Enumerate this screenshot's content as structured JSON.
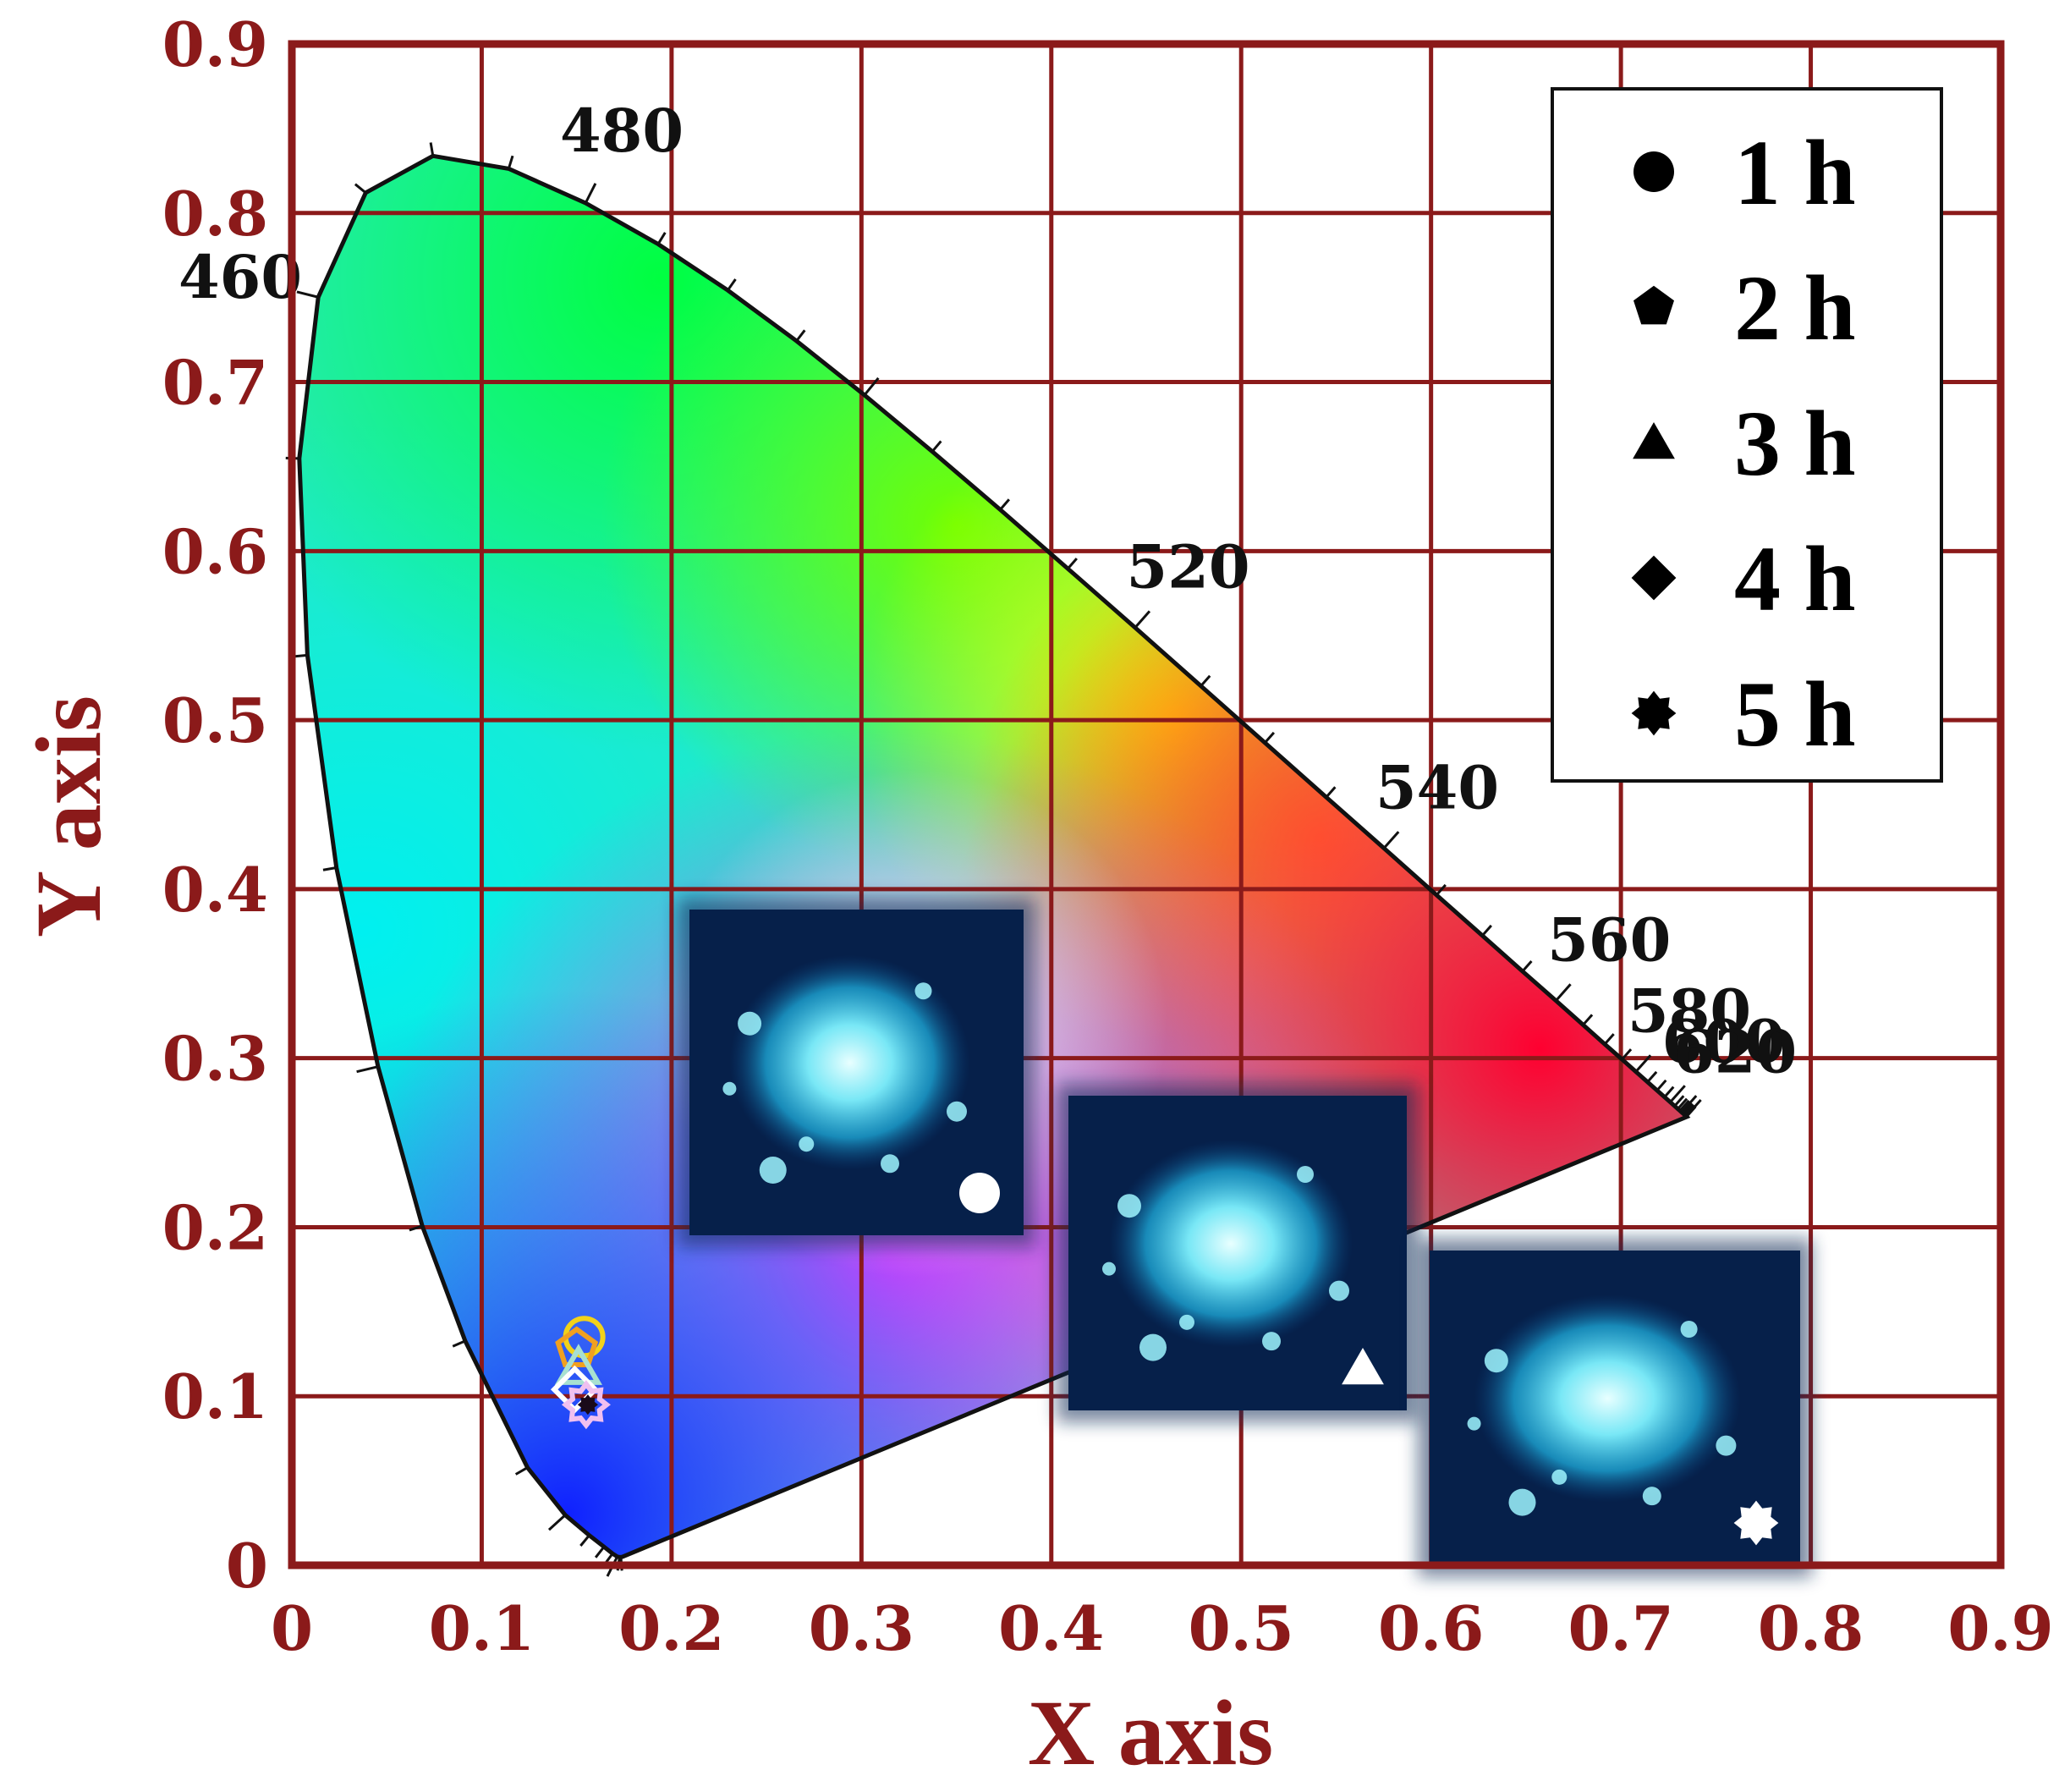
{
  "chart_data": {
    "type": "scatter",
    "title": "",
    "xlabel": "X axis",
    "ylabel": "Y axis",
    "xlim": [
      0,
      0.9
    ],
    "ylim": [
      0,
      0.9
    ],
    "grid": true,
    "x_ticks": [
      "0",
      "0.1",
      "0.2",
      "0.3",
      "0.4",
      "0.5",
      "0.6",
      "0.7",
      "0.8",
      "0.9"
    ],
    "y_ticks": [
      "0",
      "0.1",
      "0.2",
      "0.3",
      "0.4",
      "0.5",
      "0.6",
      "0.7",
      "0.8",
      "0.9"
    ],
    "legend_position": "top-right",
    "series": [
      {
        "name": "1 h",
        "marker": "circle",
        "x": 0.154,
        "y": 0.135,
        "color": "#f2d21a"
      },
      {
        "name": "2 h",
        "marker": "pentagon",
        "x": 0.15,
        "y": 0.128,
        "color": "#f0a020"
      },
      {
        "name": "3 h",
        "marker": "triangle",
        "x": 0.151,
        "y": 0.117,
        "color": "#a8e0d0"
      },
      {
        "name": "4 h",
        "marker": "diamond",
        "x": 0.149,
        "y": 0.104,
        "color": "#ffffff"
      },
      {
        "name": "5 h",
        "marker": "star",
        "x": 0.155,
        "y": 0.095,
        "color": "#f0c0f0"
      }
    ],
    "wavelength_labels": [
      {
        "text": "460",
        "nm": 460
      },
      {
        "text": "480",
        "nm": 480
      },
      {
        "text": "520",
        "nm": 520
      },
      {
        "text": "540",
        "nm": 540
      },
      {
        "text": "560",
        "nm": 560
      },
      {
        "text": "580",
        "nm": 580
      },
      {
        "text": "600",
        "nm": 600
      },
      {
        "text": "620",
        "nm": 620
      }
    ],
    "spectral_locus": [
      [
        0.1741,
        0.005
      ],
      [
        0.1738,
        0.0049
      ],
      [
        0.1733,
        0.0048
      ],
      [
        0.1726,
        0.0048
      ],
      [
        0.1714,
        0.0051
      ],
      [
        0.1689,
        0.0069
      ],
      [
        0.1644,
        0.0109
      ],
      [
        0.1566,
        0.0177
      ],
      [
        0.144,
        0.0297
      ],
      [
        0.1241,
        0.0578
      ],
      [
        0.0913,
        0.1327
      ],
      [
        0.0687,
        0.2007
      ],
      [
        0.0454,
        0.295
      ],
      [
        0.0235,
        0.4127
      ],
      [
        0.0082,
        0.5384
      ],
      [
        0.0039,
        0.6548
      ],
      [
        0.0139,
        0.7502
      ],
      [
        0.0389,
        0.812
      ],
      [
        0.0743,
        0.8338
      ],
      [
        0.1142,
        0.8262
      ],
      [
        0.1547,
        0.8059
      ],
      [
        0.1929,
        0.7816
      ],
      [
        0.2296,
        0.7543
      ],
      [
        0.2658,
        0.7243
      ],
      [
        0.3016,
        0.6923
      ],
      [
        0.3373,
        0.6589
      ],
      [
        0.3731,
        0.6245
      ],
      [
        0.4087,
        0.5896
      ],
      [
        0.4441,
        0.5547
      ],
      [
        0.4788,
        0.5202
      ],
      [
        0.5125,
        0.4866
      ],
      [
        0.5448,
        0.4544
      ],
      [
        0.5752,
        0.4242
      ],
      [
        0.6029,
        0.3965
      ],
      [
        0.627,
        0.3725
      ],
      [
        0.6482,
        0.3514
      ],
      [
        0.6658,
        0.334
      ],
      [
        0.6801,
        0.3197
      ],
      [
        0.6915,
        0.3083
      ],
      [
        0.7006,
        0.2993
      ],
      [
        0.7079,
        0.292
      ],
      [
        0.714,
        0.2859
      ],
      [
        0.719,
        0.2809
      ],
      [
        0.723,
        0.277
      ],
      [
        0.726,
        0.274
      ],
      [
        0.7283,
        0.2717
      ],
      [
        0.73,
        0.27
      ],
      [
        0.7311,
        0.2689
      ],
      [
        0.732,
        0.268
      ],
      [
        0.7327,
        0.2673
      ],
      [
        0.7334,
        0.2666
      ],
      [
        0.734,
        0.266
      ],
      [
        0.7344,
        0.2656
      ],
      [
        0.7346,
        0.2654
      ],
      [
        0.7347,
        0.2653
      ]
    ],
    "insets": [
      {
        "marker": "circle"
      },
      {
        "marker": "triangle"
      },
      {
        "marker": "star"
      }
    ]
  }
}
